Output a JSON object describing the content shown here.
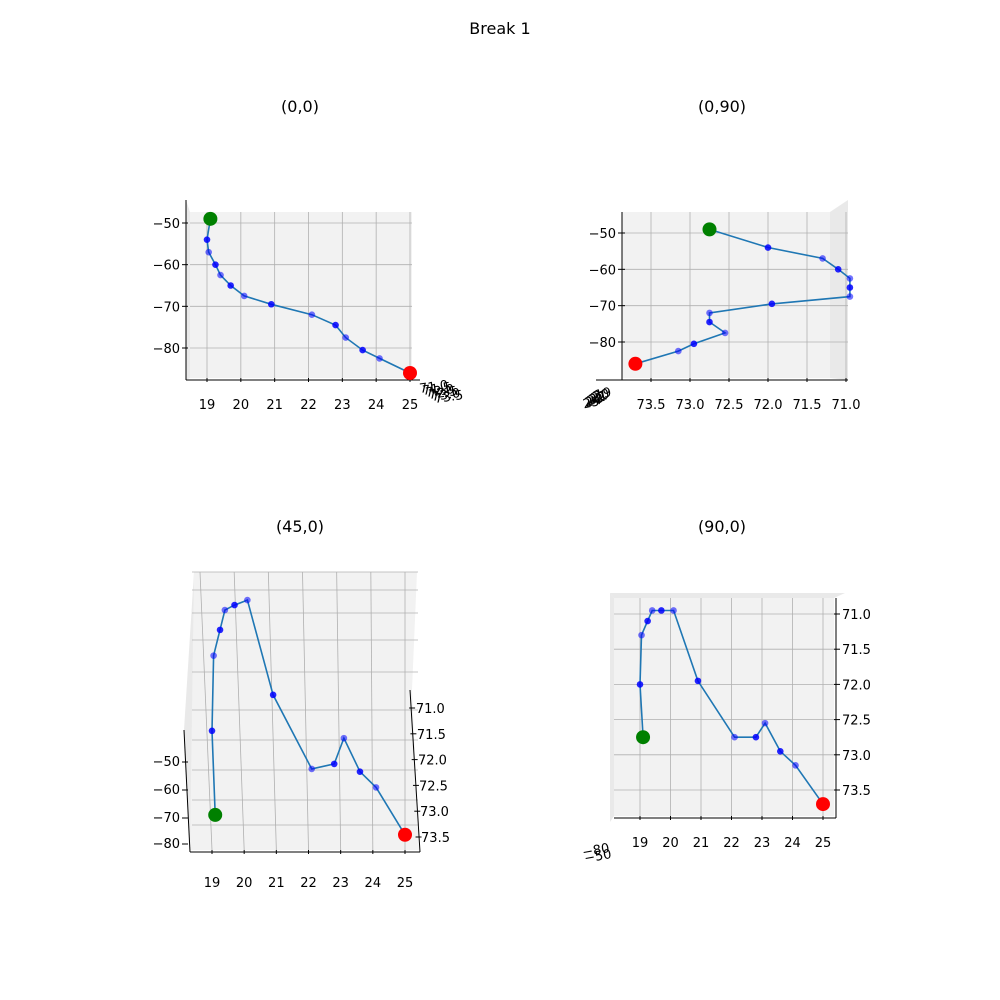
{
  "figure": {
    "title": "Break 1"
  },
  "chart_data": [
    {
      "type": "line3d",
      "title": "(0,0)",
      "view": {
        "elev": 0,
        "azim": 0
      },
      "x_ticks": [
        "19",
        "20",
        "21",
        "22",
        "23",
        "24",
        "25"
      ],
      "y_ticks": [
        "−50",
        "−60",
        "−70",
        "−80"
      ],
      "depth_ticks": [
        "71.0",
        "71.5",
        "72.0",
        "72.5",
        "73.0",
        "73.5"
      ],
      "grid": true
    },
    {
      "type": "line3d",
      "title": "(0,90)",
      "view": {
        "elev": 0,
        "azim": 90
      },
      "x_ticks": [
        "73.5",
        "73.0",
        "72.5",
        "72.0",
        "71.5",
        "71.0"
      ],
      "y_ticks": [
        "−50",
        "−60",
        "−70",
        "−80"
      ],
      "depth_ticks": [
        "19",
        "20",
        "21",
        "22",
        "23",
        "24",
        "25"
      ],
      "grid": true
    },
    {
      "type": "line3d",
      "title": "(45,0)",
      "view": {
        "elev": 45,
        "azim": 0
      },
      "x_ticks": [
        "19",
        "20",
        "21",
        "22",
        "23",
        "24",
        "25"
      ],
      "y_ticks": [
        "−50",
        "−60",
        "−70",
        "−80"
      ],
      "z_ticks": [
        "71.0",
        "71.5",
        "72.0",
        "72.5",
        "73.0",
        "73.5"
      ],
      "grid": true
    },
    {
      "type": "line3d",
      "title": "(90,0)",
      "view": {
        "elev": 90,
        "azim": 0
      },
      "x_ticks": [
        "19",
        "20",
        "21",
        "22",
        "23",
        "24",
        "25"
      ],
      "z_ticks": [
        "71.0",
        "71.5",
        "72.0",
        "72.5",
        "73.0",
        "73.5"
      ],
      "depth_ticks": [
        "−80",
        "−50"
      ],
      "grid": true
    }
  ],
  "trajectory": {
    "x": [
      19.1,
      19.0,
      19.05,
      19.25,
      19.4,
      19.7,
      20.1,
      20.9,
      22.1,
      22.8,
      23.1,
      23.6,
      24.1,
      25.0
    ],
    "y": [
      -49,
      -54,
      -57,
      -60,
      -62.5,
      -65,
      -67.5,
      -69.5,
      -72,
      -74.5,
      -77.5,
      -80.5,
      -82.5,
      -86
    ],
    "z": [
      72.75,
      72.0,
      71.3,
      71.1,
      70.95,
      70.95,
      70.95,
      71.95,
      72.75,
      72.75,
      72.55,
      72.95,
      73.15,
      73.7
    ],
    "start": {
      "x": 19.1,
      "y": -49,
      "z": 72.75
    },
    "end": {
      "x": 25.0,
      "y": -86,
      "z": 73.7
    }
  },
  "colors": {
    "line": "#1f77b4",
    "points": "#0000ff",
    "start": "#008000",
    "end": "#ff0000",
    "grid": "#b0b0b0",
    "pane": "#f2f2f2"
  }
}
